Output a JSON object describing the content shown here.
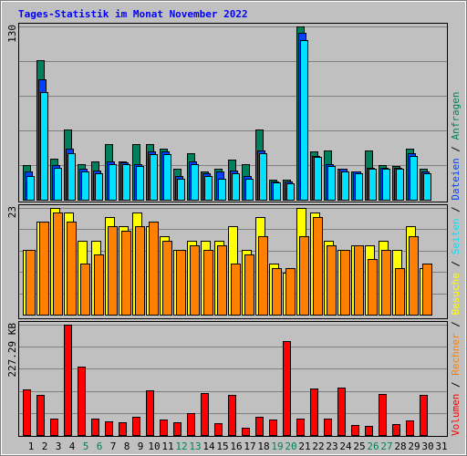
{
  "legend_separator": " / ",
  "chart_data": [
    {
      "type": "bar",
      "title": "Tages-Statistik im Monat November 2022",
      "ylim": [
        0,
        130
      ],
      "yticks": [
        130
      ],
      "series": [
        {
          "name": "Anfragen",
          "color": "#00805c",
          "values": [
            26,
            105,
            31,
            53,
            27,
            29,
            42,
            29,
            42,
            42,
            38,
            23,
            35,
            21,
            23,
            30,
            27,
            53,
            15,
            15,
            130,
            36,
            37,
            23,
            21,
            37,
            26,
            25,
            38,
            23,
            null
          ]
        },
        {
          "name": "Dateien",
          "color": "#0040ff",
          "values": [
            21,
            90,
            26,
            38,
            23,
            22,
            29,
            28,
            27,
            36,
            36,
            18,
            29,
            20,
            21,
            22,
            18,
            37,
            14,
            14,
            125,
            33,
            27,
            23,
            21,
            24,
            24,
            24,
            35,
            21,
            null
          ]
        },
        {
          "name": "Seiten",
          "color": "#00e0ff",
          "values": [
            18,
            81,
            24,
            35,
            21,
            20,
            27,
            27,
            25,
            34,
            34,
            16,
            27,
            18,
            16,
            20,
            16,
            35,
            13,
            12,
            120,
            32,
            25,
            21,
            20,
            23,
            23,
            23,
            33,
            20,
            null
          ]
        }
      ]
    },
    {
      "type": "bar",
      "ylim": [
        0,
        23
      ],
      "yticks": [
        23
      ],
      "series": [
        {
          "name": "Besuche",
          "color": "#ffff00",
          "values": [
            14,
            20,
            23,
            22,
            16,
            16,
            21,
            19,
            22,
            19,
            17,
            14,
            16,
            16,
            16,
            19,
            14,
            21,
            11,
            9,
            23,
            22,
            16,
            14,
            15,
            15,
            16,
            14,
            19,
            10,
            null
          ]
        },
        {
          "name": "Rechner",
          "color": "#ff8000",
          "values": [
            14,
            20,
            22,
            20,
            11,
            13,
            19,
            18,
            19,
            20,
            16,
            14,
            15,
            14,
            15,
            11,
            13,
            17,
            10,
            10,
            17,
            21,
            15,
            14,
            15,
            12,
            14,
            10,
            17,
            11,
            null
          ]
        }
      ]
    },
    {
      "type": "bar",
      "ylim": [
        0,
        227.29
      ],
      "yticks": [
        {
          "value": 227.29,
          "label": "227.29 KB"
        }
      ],
      "series": [
        {
          "name": "Volumen",
          "color": "#ff0000",
          "values": [
            94,
            83,
            34,
            227.29,
            141,
            34,
            28,
            26,
            38,
            92,
            32,
            26,
            45,
            86,
            24,
            83,
            15,
            38,
            32,
            193,
            34,
            96,
            34,
            98,
            21,
            19,
            85,
            23,
            30,
            83,
            null
          ]
        }
      ],
      "categories": [
        "1",
        "2",
        "3",
        "4",
        "5",
        "6",
        "7",
        "8",
        "9",
        "10",
        "11",
        "12",
        "13",
        "14",
        "15",
        "16",
        "17",
        "18",
        "19",
        "20",
        "21",
        "22",
        "23",
        "24",
        "25",
        "26",
        "27",
        "28",
        "29",
        "30",
        "31"
      ],
      "category_colors": [
        "#000",
        "#000",
        "#000",
        "#000",
        "#00805c",
        "#00805c",
        "#000",
        "#000",
        "#000",
        "#000",
        "#000",
        "#00805c",
        "#00805c",
        "#000",
        "#000",
        "#000",
        "#000",
        "#000",
        "#00805c",
        "#00805c",
        "#000",
        "#000",
        "#000",
        "#000",
        "#000",
        "#00805c",
        "#00805c",
        "#000",
        "#000",
        "#000",
        "#000"
      ]
    }
  ]
}
